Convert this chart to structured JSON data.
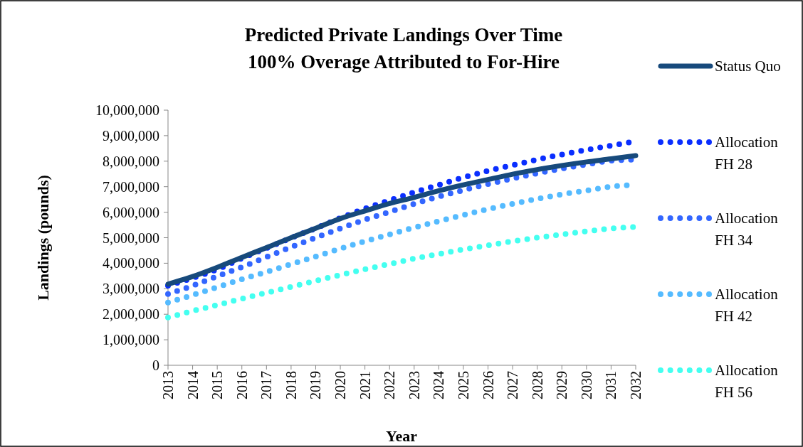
{
  "chart_data": {
    "type": "line",
    "title": "Predicted Private Landings Over Time\n100% Overage Attributed to For-Hire",
    "xlabel": "Year",
    "ylabel": "Landings (pounds)",
    "x": [
      2013,
      2014,
      2015,
      2016,
      2017,
      2018,
      2019,
      2020,
      2021,
      2022,
      2023,
      2024,
      2025,
      2026,
      2027,
      2028,
      2029,
      2030,
      2031,
      2032
    ],
    "series": [
      {
        "name": "Status Quo",
        "color": "#174a7c",
        "line_style": "solid",
        "values": [
          3180000,
          3480000,
          3840000,
          4230000,
          4610000,
          5000000,
          5370000,
          5750000,
          6050000,
          6340000,
          6580000,
          6840000,
          7070000,
          7280000,
          7490000,
          7670000,
          7830000,
          7970000,
          8090000,
          8220000
        ]
      },
      {
        "name": "Allocation FH 28",
        "color": "#0a2eff",
        "line_style": "dotted",
        "values": [
          3120000,
          3420000,
          3760000,
          4190000,
          4590000,
          4990000,
          5370000,
          5770000,
          6140000,
          6460000,
          6780000,
          7070000,
          7360000,
          7620000,
          7840000,
          8060000,
          8260000,
          8440000,
          8610000,
          8780000
        ]
      },
      {
        "name": "Allocation FH 34",
        "color": "#3366ff",
        "line_style": "dotted",
        "values": [
          2790000,
          3120000,
          3490000,
          3850000,
          4240000,
          4630000,
          5000000,
          5360000,
          5710000,
          6010000,
          6330000,
          6610000,
          6860000,
          7100000,
          7320000,
          7520000,
          7710000,
          7870000,
          8020000,
          8060000
        ]
      },
      {
        "name": "Allocation FH 42",
        "color": "#55bbff",
        "line_style": "dotted",
        "values": [
          2460000,
          2750000,
          3060000,
          3370000,
          3660000,
          3960000,
          4260000,
          4570000,
          4860000,
          5130000,
          5400000,
          5650000,
          5890000,
          6120000,
          6330000,
          6520000,
          6700000,
          6850000,
          7000000,
          7080000
        ]
      },
      {
        "name": "Allocation FH 56",
        "color": "#44fff0",
        "line_style": "dotted",
        "values": [
          1870000,
          2130000,
          2360000,
          2610000,
          2840000,
          3070000,
          3310000,
          3540000,
          3760000,
          3970000,
          4180000,
          4360000,
          4540000,
          4700000,
          4860000,
          5000000,
          5130000,
          5250000,
          5360000,
          5420000
        ]
      }
    ],
    "xlim": [
      2013,
      2032
    ],
    "xticks": [
      2013,
      2014,
      2015,
      2016,
      2017,
      2018,
      2019,
      2020,
      2021,
      2022,
      2023,
      2024,
      2025,
      2026,
      2027,
      2028,
      2029,
      2030,
      2031,
      2032
    ],
    "ylim": [
      0,
      10000000
    ],
    "yticks": [
      0,
      {
        "value": 1000000,
        "label": "1,000,000"
      },
      {
        "value": 2000000,
        "label": "2,000,000"
      },
      {
        "value": 3000000,
        "label": "3,000,000"
      },
      {
        "value": 4000000,
        "label": "4,000,000"
      },
      {
        "value": 5000000,
        "label": "5,000,000"
      },
      {
        "value": 6000000,
        "label": "6,000,000"
      },
      {
        "value": 7000000,
        "label": "7,000,000"
      },
      {
        "value": 8000000,
        "label": "8,000,000"
      },
      {
        "value": 9000000,
        "label": "9,000,000"
      },
      {
        "value": 10000000,
        "label": "10,000,000"
      }
    ],
    "grid": false,
    "legend": "right"
  }
}
